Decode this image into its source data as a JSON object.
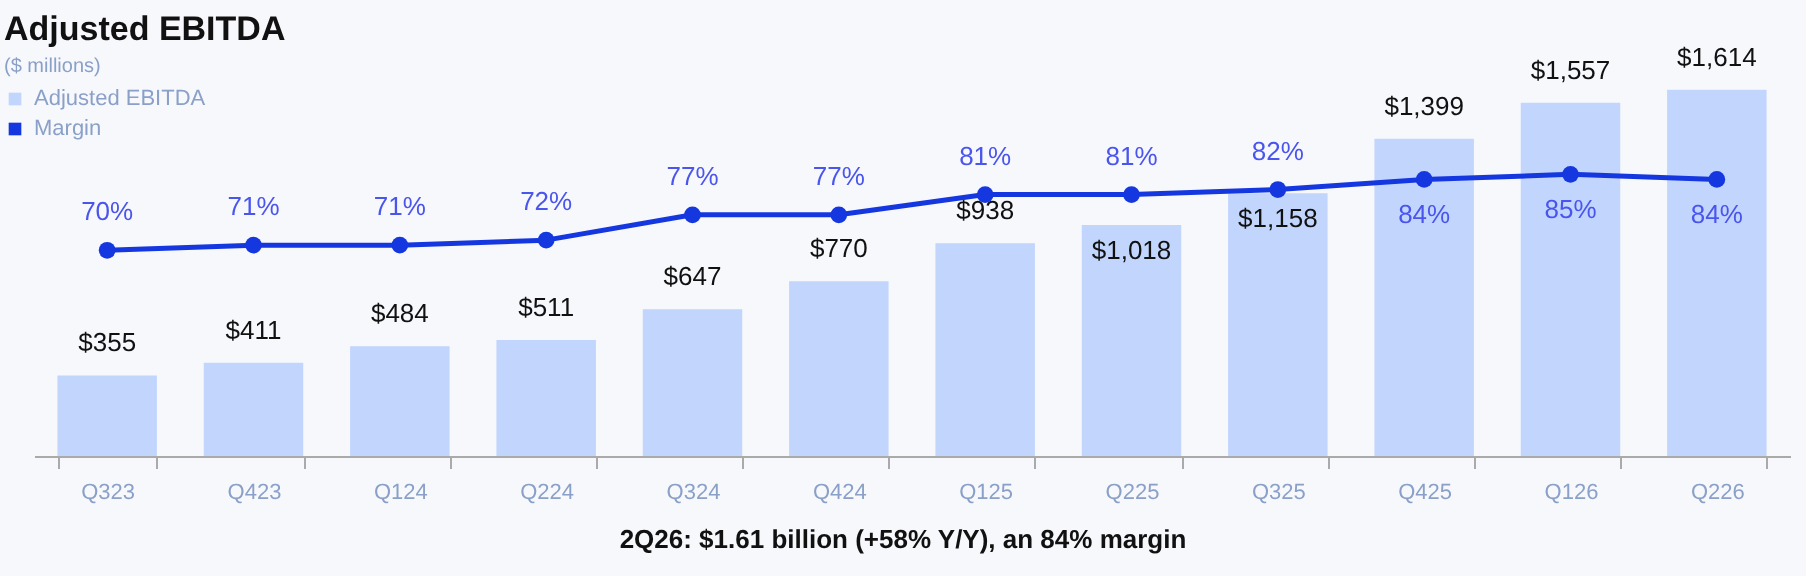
{
  "chart_data": {
    "type": "bar",
    "title": "Adjusted EBITDA",
    "subtitle": "($ millions)",
    "categories": [
      "Q323",
      "Q423",
      "Q124",
      "Q224",
      "Q324",
      "Q424",
      "Q125",
      "Q225",
      "Q325",
      "Q425",
      "Q126",
      "Q226"
    ],
    "series": [
      {
        "name": "Adjusted EBITDA",
        "color": "#c2d5fd",
        "values": [
          355,
          411,
          484,
          511,
          647,
          770,
          938,
          1018,
          1158,
          1399,
          1557,
          1614
        ],
        "value_labels": [
          "$355",
          "$411",
          "$484",
          "$511",
          "$647",
          "$770",
          "$938",
          "$1,018",
          "$1,158",
          "$1,399",
          "$1,557",
          "$1,614"
        ]
      },
      {
        "name": "Margin",
        "type": "line",
        "axis": "y2",
        "color": "#1537e0",
        "values": [
          70,
          71,
          71,
          72,
          77,
          77,
          81,
          81,
          82,
          84,
          85,
          84
        ],
        "value_labels": [
          "70%",
          "71%",
          "71%",
          "72%",
          "77%",
          "77%",
          "81%",
          "81%",
          "82%",
          "84%",
          "85%",
          "84%"
        ]
      }
    ],
    "annotations": [
      "2Q26: $1.61 billion (+58% Y/Y), an 84% margin"
    ],
    "legend": "top left",
    "marker": "circle",
    "tick_labels": "x",
    "grid": false
  }
}
